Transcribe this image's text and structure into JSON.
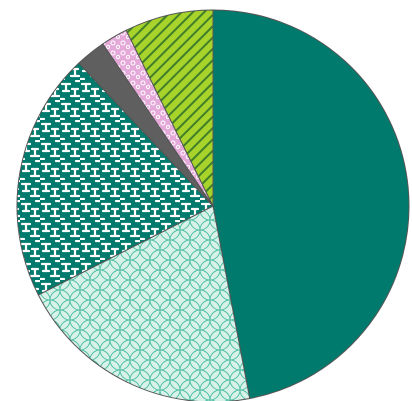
{
  "chart_data": {
    "type": "pie",
    "title": "",
    "legend": "none",
    "start": "12 o'clock",
    "direction": "clockwise",
    "slices": [
      {
        "value": 47.0,
        "fill": "#007a6c",
        "pattern": "solid",
        "pattern_color": "#007a6c",
        "pattern_bg": "#007a6c"
      },
      {
        "value": 20.5,
        "fill": "#d8f2ea",
        "pattern": "overlapping-circles",
        "pattern_color": "#4fbfa3",
        "pattern_bg": "#d8f2ea"
      },
      {
        "value": 20.5,
        "fill": "#007a6c",
        "pattern": "interlocking-tiles",
        "pattern_color": "#ffffff",
        "pattern_bg": "#007a6c"
      },
      {
        "value": 2.5,
        "fill": "#5f5f5f",
        "pattern": "solid",
        "pattern_color": "#5f5f5f",
        "pattern_bg": "#5f5f5f"
      },
      {
        "value": 2.2,
        "fill": "#e5a9d9",
        "pattern": "bubbles",
        "pattern_color": "#ffffff",
        "pattern_bg": "#e5a9d9"
      },
      {
        "value": 7.3,
        "fill": "#a7d32a",
        "pattern": "diagonal-stripes",
        "pattern_color": "#3f7f2a",
        "pattern_bg": "#a7d32a"
      }
    ]
  }
}
